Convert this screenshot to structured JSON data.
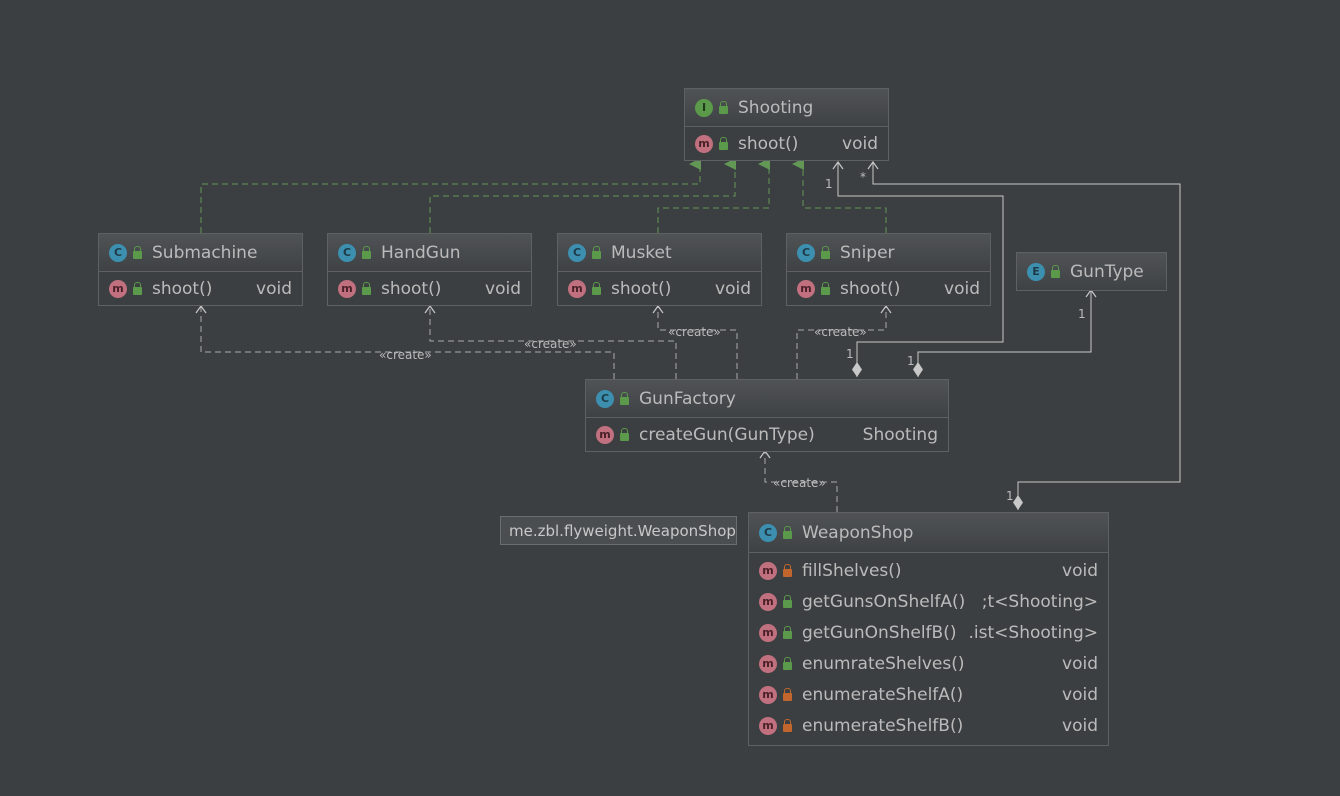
{
  "classes": {
    "shooting": {
      "kind": "I",
      "name": "Shooting",
      "methods": [
        {
          "name": "shoot()",
          "type": "void",
          "visibility": "public"
        }
      ]
    },
    "submachine": {
      "kind": "C",
      "name": "Submachine",
      "methods": [
        {
          "name": "shoot()",
          "type": "void",
          "visibility": "public"
        }
      ]
    },
    "handgun": {
      "kind": "C",
      "name": "HandGun",
      "methods": [
        {
          "name": "shoot()",
          "type": "void",
          "visibility": "public"
        }
      ]
    },
    "musket": {
      "kind": "C",
      "name": "Musket",
      "methods": [
        {
          "name": "shoot()",
          "type": "void",
          "visibility": "public"
        }
      ]
    },
    "sniper": {
      "kind": "C",
      "name": "Sniper",
      "methods": [
        {
          "name": "shoot()",
          "type": "void",
          "visibility": "public"
        }
      ]
    },
    "guntype": {
      "kind": "E",
      "name": "GunType"
    },
    "gunfactory": {
      "kind": "C",
      "name": "GunFactory",
      "methods": [
        {
          "name": "createGun(GunType)",
          "type": "Shooting",
          "visibility": "public"
        }
      ]
    },
    "weaponshop": {
      "kind": "C",
      "name": "WeaponShop",
      "methods": [
        {
          "name": "fillShelves()",
          "type": "void",
          "visibility": "private"
        },
        {
          "name": "getGunsOnShelfA()",
          "type": ";t<Shooting>",
          "visibility": "public"
        },
        {
          "name": "getGunOnShelfB()",
          "type": ".ist<Shooting>",
          "visibility": "public"
        },
        {
          "name": "enumrateShelves()",
          "type": "void",
          "visibility": "public"
        },
        {
          "name": "enumerateShelfA()",
          "type": "void",
          "visibility": "private"
        },
        {
          "name": "enumerateShelfB()",
          "type": "void",
          "visibility": "private"
        }
      ]
    }
  },
  "tooltip": "me.zbl.flyweight.WeaponShop",
  "edge_labels": {
    "create": "«create»",
    "one": "1",
    "many": "*"
  },
  "colors": {
    "background": "#3c3f41",
    "implements": "#629755",
    "dependency": "#a9a9a9",
    "composition": "#c8c8c8"
  }
}
